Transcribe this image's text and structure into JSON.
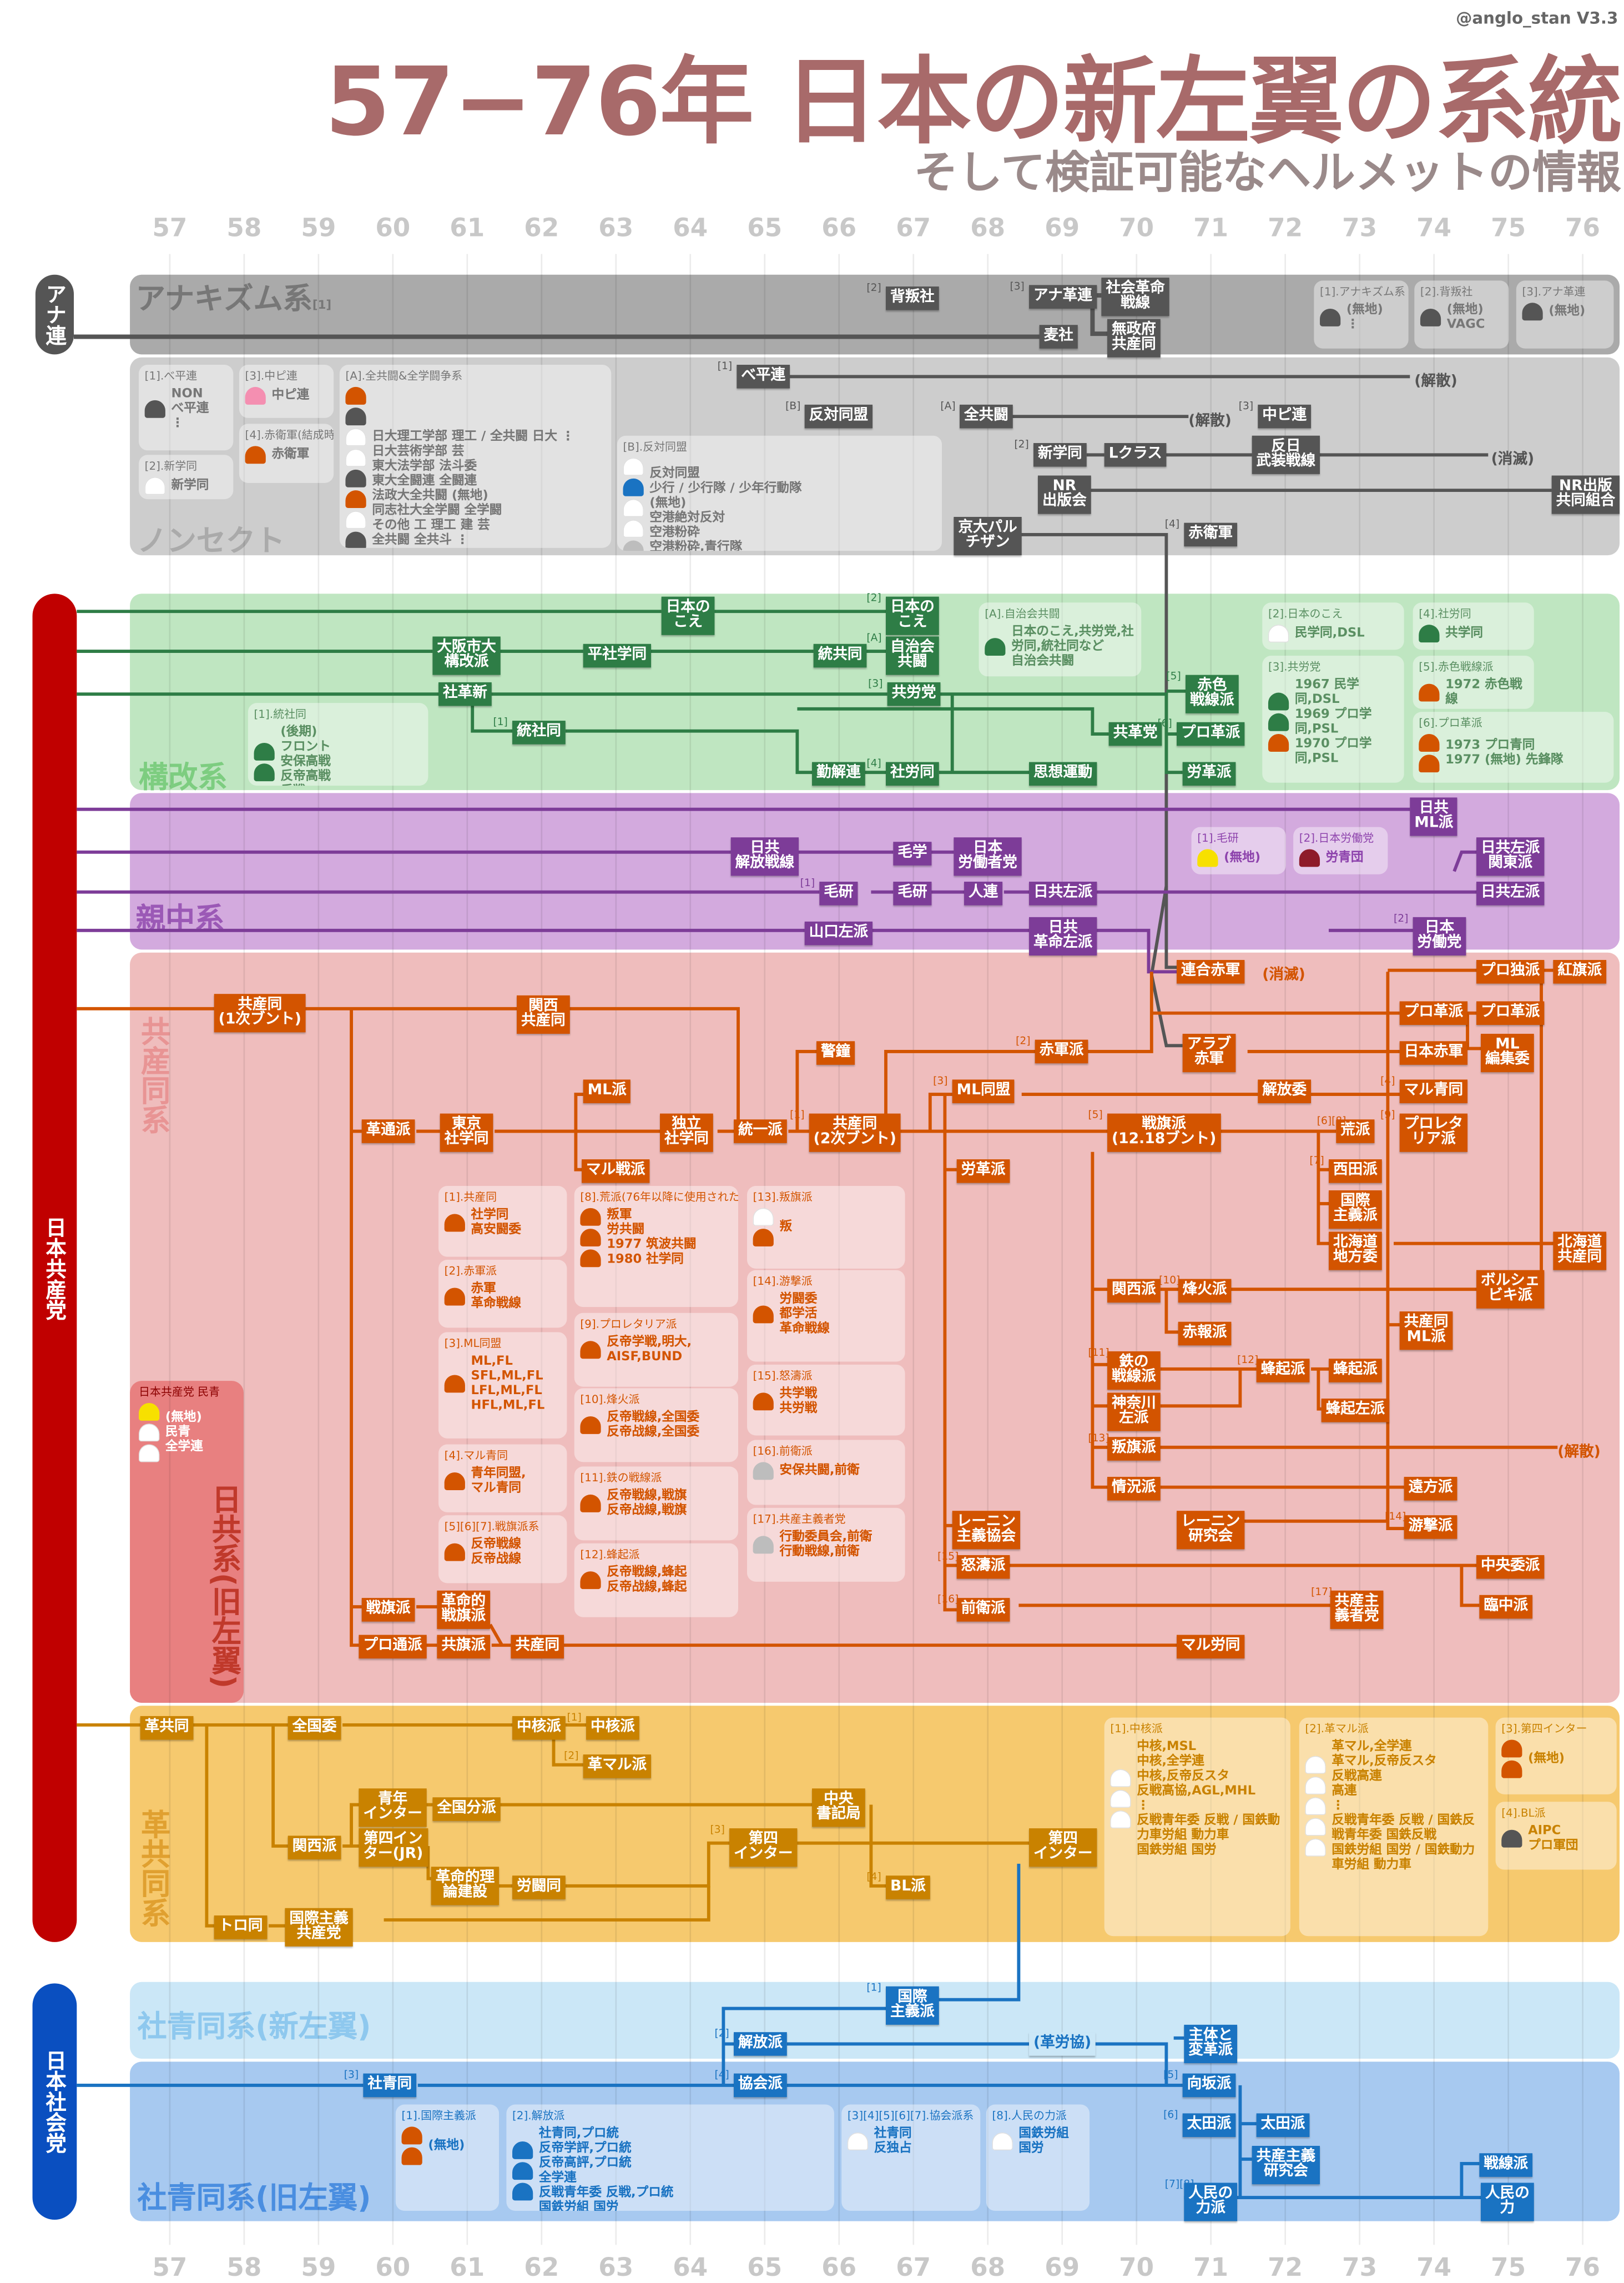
{
  "header": {
    "credit": "@anglo_stan V3.3",
    "title": "57−76年 日本の新左翼の系統",
    "subtitle": "そして検証可能なヘルメットの情報"
  },
  "years": [
    "57",
    "58",
    "59",
    "60",
    "61",
    "62",
    "63",
    "64",
    "65",
    "66",
    "67",
    "68",
    "69",
    "70",
    "71",
    "72",
    "73",
    "74",
    "75",
    "76"
  ],
  "colors": {
    "a": "#555555",
    "n": "#555555",
    "k": "#2e7d46",
    "s": "#7d3c98",
    "b": "#d35400",
    "r": "#c98200",
    "j": "#1a73c2"
  },
  "pills": {
    "anaren": "アナ連",
    "jcp": "日本共産党",
    "jsp": "日本社会党"
  },
  "groups": {
    "anarchism": "アナキズム系",
    "anarchism_tag": "[1]",
    "nonsect": "ノンセクト",
    "kokai": "構改系",
    "shinchu": "親中系",
    "kyosando": "共産同系",
    "kakukyodo": "革共同系",
    "shaseido_new": "社青同系(新左翼)",
    "shaseido_old": "社青同系(旧左翼)",
    "nikkyo": "日共系(旧左翼)"
  },
  "nodes": [
    {
      "t": "背叛社",
      "n": "[2]",
      "g": "a"
    },
    {
      "t": "アナ革連",
      "n": "[3]",
      "g": "a"
    },
    {
      "t": "社会革命\n戦線",
      "g": "a"
    },
    {
      "t": "麦社",
      "g": "a"
    },
    {
      "t": "無政府\n共産同",
      "g": "a"
    },
    {
      "t": "べ平連",
      "n": "[1]",
      "g": "n"
    },
    {
      "t": "反対同盟",
      "n": "[B]",
      "g": "n"
    },
    {
      "t": "全共闘",
      "n": "[A]",
      "g": "n"
    },
    {
      "t": "中ピ連",
      "n": "[3]",
      "g": "n"
    },
    {
      "t": "新学同",
      "n": "[2]",
      "g": "n"
    },
    {
      "t": "Lクラス",
      "g": "n"
    },
    {
      "t": "反日\n武装戦線",
      "g": "n"
    },
    {
      "t": "NR\n出版会",
      "g": "n"
    },
    {
      "t": "NR出版\n共同組合",
      "g": "n"
    },
    {
      "t": "京大パル\nチザン",
      "g": "n"
    },
    {
      "t": "赤衛軍",
      "n": "[4]",
      "g": "n"
    },
    {
      "t": "日本の\nこえ",
      "g": "k"
    },
    {
      "t": "日本の\nこえ",
      "n": "[2]",
      "g": "k"
    },
    {
      "t": "大阪市大\n構改派",
      "g": "k"
    },
    {
      "t": "平社学同",
      "g": "k"
    },
    {
      "t": "統共同",
      "g": "k"
    },
    {
      "t": "自治会\n共闘",
      "n": "[A]",
      "g": "k"
    },
    {
      "t": "社革新",
      "g": "k"
    },
    {
      "t": "共労党",
      "n": "[3]",
      "g": "k"
    },
    {
      "t": "赤色\n戦線派",
      "n": "[5]",
      "g": "k"
    },
    {
      "t": "統社同",
      "n": "[1]",
      "g": "k"
    },
    {
      "t": "共革党",
      "g": "k"
    },
    {
      "t": "プロ革派",
      "n": "[6]",
      "g": "k"
    },
    {
      "t": "勤解連",
      "g": "k"
    },
    {
      "t": "社労同",
      "n": "[4]",
      "g": "k"
    },
    {
      "t": "思想運動",
      "g": "k"
    },
    {
      "t": "労革派",
      "g": "k"
    },
    {
      "t": "日共\nML派",
      "g": "s"
    },
    {
      "t": "日共\n解放戦線",
      "g": "s"
    },
    {
      "t": "毛学",
      "g": "s"
    },
    {
      "t": "日本\n労働者党",
      "g": "s"
    },
    {
      "t": "日共左派\n関東派",
      "g": "s"
    },
    {
      "t": "毛研",
      "n": "[1]",
      "g": "s"
    },
    {
      "t": "毛研",
      "g": "s"
    },
    {
      "t": "人連",
      "g": "s"
    },
    {
      "t": "日共左派",
      "g": "s"
    },
    {
      "t": "日共左派",
      "g": "s"
    },
    {
      "t": "山口左派",
      "g": "s"
    },
    {
      "t": "日共\n革命左派",
      "g": "s"
    },
    {
      "t": "日本\n労働党",
      "n": "[2]",
      "g": "s"
    },
    {
      "t": "共産同\n(1次ブント)",
      "g": "b"
    },
    {
      "t": "関西\n共産同",
      "g": "b"
    },
    {
      "t": "連合赤軍",
      "g": "b"
    },
    {
      "t": "プロ独派",
      "g": "b"
    },
    {
      "t": "紅旗派",
      "g": "b"
    },
    {
      "t": "プロ革派",
      "g": "b"
    },
    {
      "t": "プロ革派",
      "g": "b"
    },
    {
      "t": "アラブ\n赤軍",
      "g": "b"
    },
    {
      "t": "赤軍派",
      "n": "[2]",
      "g": "b"
    },
    {
      "t": "日本赤軍",
      "g": "b"
    },
    {
      "t": "ML\n編集委",
      "g": "b"
    },
    {
      "t": "警鐘",
      "g": "b"
    },
    {
      "t": "ML派",
      "g": "b"
    },
    {
      "t": "ML同盟",
      "n": "[3]",
      "g": "b"
    },
    {
      "t": "解放委",
      "g": "b"
    },
    {
      "t": "マル青同",
      "n": "[4]",
      "g": "b"
    },
    {
      "t": "革通派",
      "g": "b"
    },
    {
      "t": "東京\n社学同",
      "g": "b"
    },
    {
      "t": "独立\n社学同",
      "g": "b"
    },
    {
      "t": "統一派",
      "g": "b"
    },
    {
      "t": "共産同\n(2次ブント)",
      "n": "[1]",
      "g": "b"
    },
    {
      "t": "戦旗派\n(12.18ブント)",
      "n": "[5]",
      "g": "b"
    },
    {
      "t": "荒派",
      "n": "[6][8]",
      "g": "b"
    },
    {
      "t": "プロレタ\nリア派",
      "n": "[9]",
      "g": "b"
    },
    {
      "t": "マル戦派",
      "g": "b"
    },
    {
      "t": "労革派",
      "g": "b"
    },
    {
      "t": "西田派",
      "n": "[7]",
      "g": "b"
    },
    {
      "t": "国際\n主義派",
      "g": "b"
    },
    {
      "t": "北海道\n地方委",
      "g": "b"
    },
    {
      "t": "北海道\n共産同",
      "g": "b"
    },
    {
      "t": "ボルシェ\nビキ派",
      "g": "b"
    },
    {
      "t": "関西派",
      "g": "b"
    },
    {
      "t": "烽火派",
      "n": "[10]",
      "g": "b"
    },
    {
      "t": "赤報派",
      "g": "b"
    },
    {
      "t": "共産同\nML派",
      "g": "b"
    },
    {
      "t": "鉄の\n戦線派",
      "n": "[11]",
      "g": "b"
    },
    {
      "t": "蜂起派",
      "n": "[12]",
      "g": "b"
    },
    {
      "t": "蜂起派",
      "g": "b"
    },
    {
      "t": "神奈川\n左派",
      "g": "b"
    },
    {
      "t": "蜂起左派",
      "g": "b"
    },
    {
      "t": "叛旗派",
      "n": "[13]",
      "g": "b"
    },
    {
      "t": "情況派",
      "g": "b"
    },
    {
      "t": "遠方派",
      "g": "b"
    },
    {
      "t": "レーニン\n主義協会",
      "g": "b"
    },
    {
      "t": "レーニン\n研究会",
      "g": "b"
    },
    {
      "t": "游撃派",
      "n": "[14]",
      "g": "b"
    },
    {
      "t": "怒濤派",
      "n": "[15]",
      "g": "b"
    },
    {
      "t": "中央委派",
      "g": "b"
    },
    {
      "t": "前衛派",
      "n": "[16]",
      "g": "b"
    },
    {
      "t": "共産主\n義者党",
      "n": "[17]",
      "g": "b"
    },
    {
      "t": "臨中派",
      "g": "b"
    },
    {
      "t": "戦旗派",
      "g": "b"
    },
    {
      "t": "革命的\n戦旗派",
      "g": "b"
    },
    {
      "t": "プロ通派",
      "g": "b"
    },
    {
      "t": "共旗派",
      "g": "b"
    },
    {
      "t": "共産同",
      "g": "b"
    },
    {
      "t": "マル労同",
      "g": "b"
    },
    {
      "t": "革共同",
      "g": "r"
    },
    {
      "t": "全国委",
      "g": "r"
    },
    {
      "t": "中核派",
      "g": "r"
    },
    {
      "t": "中核派",
      "n": "[1]",
      "g": "r"
    },
    {
      "t": "革マル派",
      "n": "[2]",
      "g": "r"
    },
    {
      "t": "青年\nインター",
      "g": "r"
    },
    {
      "t": "全国分派",
      "g": "r"
    },
    {
      "t": "第四イン\nター(JR)",
      "g": "r"
    },
    {
      "t": "関西派",
      "g": "r"
    },
    {
      "t": "中央\n書記局",
      "g": "r"
    },
    {
      "t": "第四\nインター",
      "n": "[3]",
      "g": "r"
    },
    {
      "t": "第四\nインター",
      "g": "r"
    },
    {
      "t": "BL派",
      "n": "[4]",
      "g": "r"
    },
    {
      "t": "革命的理\n論建設",
      "g": "r"
    },
    {
      "t": "労闘同",
      "g": "r"
    },
    {
      "t": "トロ同",
      "g": "r"
    },
    {
      "t": "国際主義\n共産党",
      "g": "r"
    },
    {
      "t": "国際\n主義派",
      "n": "[1]",
      "g": "j"
    },
    {
      "t": "解放派",
      "n": "[2]",
      "g": "j"
    },
    {
      "t": "(革労協)",
      "g": "j"
    },
    {
      "t": "主体と\n変革派",
      "g": "j"
    },
    {
      "t": "社青同",
      "n": "[3]",
      "g": "j"
    },
    {
      "t": "協会派",
      "n": "[4]",
      "g": "j"
    },
    {
      "t": "向坂派",
      "n": "[5]",
      "g": "j"
    },
    {
      "t": "太田派",
      "n": "[6]",
      "g": "j"
    },
    {
      "t": "太田派",
      "g": "j"
    },
    {
      "t": "共産主義\n研究会",
      "g": "j"
    },
    {
      "t": "人民の\n力派",
      "n": "[7][8]",
      "g": "j"
    },
    {
      "t": "戦線派",
      "g": "j"
    },
    {
      "t": "人民の\n力",
      "g": "j"
    }
  ],
  "notes": [
    {
      "t": "(解散)",
      "g": "n"
    },
    {
      "t": "(解散)",
      "g": "n"
    },
    {
      "t": "(消滅)",
      "g": "n"
    },
    {
      "t": "(消滅)",
      "g": "b"
    },
    {
      "t": "(解散)",
      "g": "b"
    }
  ],
  "legends": [
    {
      "title": "[1].アナキズム系",
      "helmets": [
        "k"
      ],
      "lines": "(無地)\n⋮",
      "g": "a"
    },
    {
      "title": "[2].背叛社",
      "helmets": [
        "k"
      ],
      "lines": "(無地)\nVAGC",
      "g": "a"
    },
    {
      "title": "[3].アナ革連",
      "helmets": [
        "k"
      ],
      "lines": "(無地)",
      "g": "a"
    },
    {
      "title": "[1].べ平連",
      "helmets": [
        "k"
      ],
      "lines": "NON\nべ平連\n⋮",
      "g": "n"
    },
    {
      "title": "[2].新学同",
      "helmets": [
        "w"
      ],
      "lines": "新学同",
      "g": "n"
    },
    {
      "title": "[3].中ピ連",
      "helmets": [
        "p"
      ],
      "lines": "中ピ連",
      "g": "n"
    },
    {
      "title": "[4].赤衛軍(結成時期不明)",
      "helmets": [
        "o"
      ],
      "lines": "赤衛軍",
      "g": "n"
    },
    {
      "title": "[A].全共闘&全学闘争系",
      "helmets": [
        "o",
        "k",
        "w",
        "w",
        "k",
        "o",
        "w",
        "k",
        "o",
        "gr"
      ],
      "lines": "日大理工学部 理工 / 全共闘 日大 ⋮\n日大芸術学部 芸\n東大法学部 法斗委\n東大全闘連 全闘連\n法政大全共闘 (無地)\n同志社大全学闘 全学闘\nその他 工 理工 建 芸\n全共闘 全共斗 ⋮",
      "g": "n"
    },
    {
      "title": "[B].反対同盟",
      "helmets": [
        "w",
        "b",
        "w",
        "w",
        "gr",
        "o"
      ],
      "lines": "反対同盟\n少行 / 少行隊 / 少年行動隊\n(無地)\n空港絶対反対\n空港粉砕\n空港粉砕,青行隊\n⋮",
      "g": "n"
    },
    {
      "title": "[A].自治会共闘",
      "helmets": [
        "g"
      ],
      "lines": "日本のこえ,共労党,社労同,統社同など\n自治会共闘",
      "g": "k"
    },
    {
      "title": "[1].統社同",
      "helmets": [
        "g",
        "g"
      ],
      "lines": "(後期)\nフロント\n安保高戦\n反帝高戦\n反戦",
      "g": "k"
    },
    {
      "title": "[2].日本のこえ",
      "helmets": [
        "w"
      ],
      "lines": "民学同,DSL",
      "g": "k"
    },
    {
      "title": "[3].共労党",
      "helmets": [
        "g",
        "g",
        "o"
      ],
      "lines": "1967 民学同,DSL\n1969 プロ学同,PSL\n1970 プロ学同,PSL",
      "g": "k"
    },
    {
      "title": "[4].社労同",
      "helmets": [
        "g"
      ],
      "lines": "共学同",
      "g": "k"
    },
    {
      "title": "[5].赤色戦線派",
      "helmets": [
        "o"
      ],
      "lines": "1972 赤色戦線",
      "g": "k"
    },
    {
      "title": "[6].プロ革派",
      "helmets": [
        "o",
        "o"
      ],
      "lines": "1973 プロ青同\n1977 (無地) 先鋒隊",
      "g": "k"
    },
    {
      "title": "[1].毛研",
      "helmets": [
        "y"
      ],
      "lines": "(無地)",
      "g": "s"
    },
    {
      "title": "[2].日本労働党",
      "helmets": [
        "m"
      ],
      "lines": "労青団",
      "g": "s"
    },
    {
      "title": "[1].共産同",
      "helmets": [
        "o"
      ],
      "lines": "社学同\n高安闘委",
      "g": "b"
    },
    {
      "title": "[2].赤軍派",
      "helmets": [
        "o"
      ],
      "lines": "赤軍\n革命戦線",
      "g": "b"
    },
    {
      "title": "[3].ML同盟",
      "helmets": [
        "o"
      ],
      "lines": "ML,FL\nSFL,ML,FL\nLFL,ML,FL\nHFL,ML,FL",
      "g": "b"
    },
    {
      "title": "[4].マル青同",
      "helmets": [
        "o"
      ],
      "lines": "青年同盟,\nマル青同",
      "g": "b"
    },
    {
      "title": "[5][6][7].戦旗派系",
      "helmets": [
        "o"
      ],
      "lines": "反帝戦線\n反帝战線",
      "g": "b"
    },
    {
      "title": "[8].荒派(76年以降に使用された文句)",
      "helmets": [
        "o",
        "o",
        "o"
      ],
      "lines": "叛軍\n労共闘\n1977 筑波共闘\n1980 社学同",
      "g": "b"
    },
    {
      "title": "[9].プロレタリア派",
      "helmets": [
        "o"
      ],
      "lines": "反帝学戦,明大,\nAISF,BUND",
      "g": "b"
    },
    {
      "title": "[10].烽火派",
      "helmets": [
        "o"
      ],
      "lines": "反帝戦線,全国委\n反帝战線,全国委",
      "g": "b"
    },
    {
      "title": "[11].鉄の戦線派",
      "helmets": [
        "o"
      ],
      "lines": "反帝戦線,戦旗\n反帝战線,戦旗",
      "g": "b"
    },
    {
      "title": "[12].蜂起派",
      "helmets": [
        "o"
      ],
      "lines": "反帝戦線,蜂起\n反帝战線,蜂起",
      "g": "b"
    },
    {
      "title": "[13].叛旗派",
      "helmets": [
        "w",
        "o"
      ],
      "lines": "叛",
      "g": "b"
    },
    {
      "title": "[14].游撃派",
      "helmets": [
        "o"
      ],
      "lines": "労闘委\n都学活\n革命戦線",
      "g": "b"
    },
    {
      "title": "[15].怒濤派",
      "helmets": [
        "o"
      ],
      "lines": "共学戦\n共労戦",
      "g": "b"
    },
    {
      "title": "[16].前衛派",
      "helmets": [
        "gr"
      ],
      "lines": "安保共闘,前衛",
      "g": "b"
    },
    {
      "title": "[17].共産主義者党",
      "helmets": [
        "gr"
      ],
      "lines": "行動委員会,前衛\n行動戦線,前衛",
      "g": "b"
    },
    {
      "title": "日本共産党 民青",
      "helmets": [
        "y",
        "w",
        "w"
      ],
      "lines": "(無地)\n民青\n全学連",
      "g": "x"
    },
    {
      "title": "[1].中核派",
      "helmets": [
        "w",
        "w",
        "w"
      ],
      "lines": "中核,MSL\n中核,全学連\n中核,反帝反スタ\n反戦高協,AGL,MHL\n⋮\n反戦青年委 反戦 / 国鉄動力車労組 動力車\n国鉄労組 国労",
      "g": "r"
    },
    {
      "title": "[2].革マル派",
      "helmets": [
        "w",
        "w",
        "w",
        "w",
        "w"
      ],
      "lines": "革マル,全学連\n革マル,反帝反スタ\n反戦高連\n高連\n⋮\n反戦青年委 反戦 / 国鉄反戦青年委 国鉄反戦\n国鉄労組 国労 / 国鉄動力車労組 動力車",
      "g": "r"
    },
    {
      "title": "[3].第四インター",
      "helmets": [
        "o",
        "o"
      ],
      "lines": "(無地)",
      "g": "r"
    },
    {
      "title": "[4].BL派",
      "helmets": [
        "k"
      ],
      "lines": "AIPC\nプロ軍団",
      "g": "r"
    },
    {
      "title": "[1].国際主義派",
      "helmets": [
        "o",
        "o"
      ],
      "lines": "(無地)",
      "g": "j"
    },
    {
      "title": "[2].解放派",
      "helmets": [
        "b",
        "b",
        "b"
      ],
      "lines": "社青同,プロ統\n反帝学評,プロ統\n反帝高評,プロ統\n全学連\n反戦青年委 反戦,プロ統\n国鉄労組 国労",
      "g": "j"
    },
    {
      "title": "[3][4][5][6][7].協会派系",
      "helmets": [
        "w"
      ],
      "lines": "社青同\n反独占",
      "g": "j"
    },
    {
      "title": "[8].人民の力派",
      "helmets": [
        "w"
      ],
      "lines": "国鉄労組\n国労",
      "g": "j"
    }
  ],
  "helmet_colors": {
    "k": "#555555",
    "w": "#ffffff",
    "o": "#d35400",
    "g": "#2e7d46",
    "gr": "#bdbdbd",
    "p": "#f48fb1",
    "b": "#1a73c2",
    "y": "#f7e000",
    "m": "#8e1b2a"
  }
}
